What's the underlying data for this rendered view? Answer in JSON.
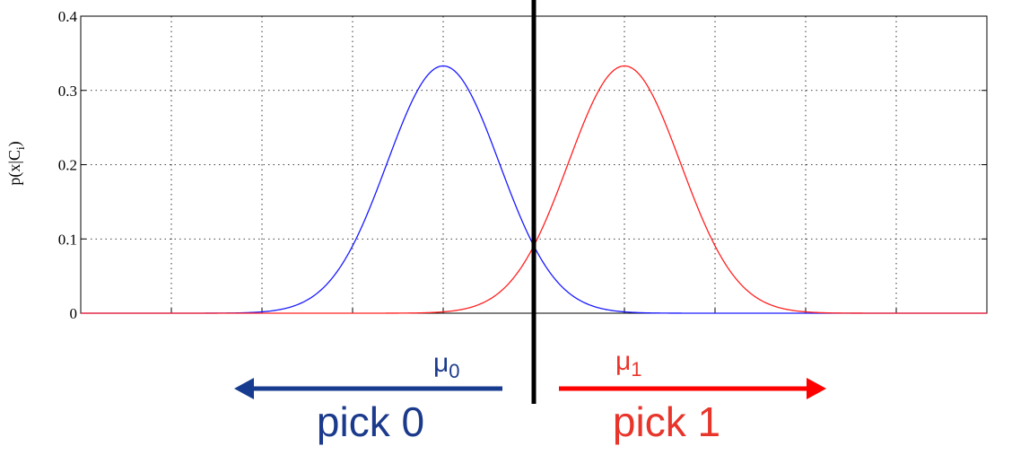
{
  "chart_data": {
    "type": "line",
    "title": "",
    "xlabel": "",
    "ylabel": {
      "base": "p(x|C",
      "sub": "i",
      "close": ")"
    },
    "xlim": [
      -5,
      5
    ],
    "ylim": [
      0,
      0.4
    ],
    "x_gridlines": [
      -4,
      -3,
      -2,
      -1,
      0,
      1,
      2,
      3,
      4
    ],
    "y_ticks": [
      {
        "value": 0,
        "label": "0"
      },
      {
        "value": 0.1,
        "label": "0.1"
      },
      {
        "value": 0.2,
        "label": "0.2"
      },
      {
        "value": 0.3,
        "label": "0.3"
      },
      {
        "value": 0.4,
        "label": "0.4"
      }
    ],
    "grid": true,
    "series": [
      {
        "key": "class-0",
        "color": "#1a1aff",
        "curve": "gaussian",
        "mean": -1,
        "peak": 0.333,
        "sd": 0.62
      },
      {
        "key": "class-1",
        "color": "#ff2020",
        "curve": "gaussian",
        "mean": 1,
        "peak": 0.333,
        "sd": 0.62
      }
    ],
    "decision_boundary": {
      "x": 0,
      "color": "#000000"
    }
  },
  "annotations": {
    "mu0": {
      "symbol": "μ",
      "sub": "0",
      "color": "#1b3a8c"
    },
    "mu1": {
      "symbol": "μ",
      "sub": "1",
      "color": "#e8352b"
    },
    "pick0": {
      "text": "pick 0",
      "color": "#1b3a8c",
      "arrow_color": "#173c8f",
      "direction": "left"
    },
    "pick1": {
      "text": "pick 1",
      "color": "#e8352b",
      "arrow_color": "#ff0000",
      "direction": "right"
    }
  }
}
